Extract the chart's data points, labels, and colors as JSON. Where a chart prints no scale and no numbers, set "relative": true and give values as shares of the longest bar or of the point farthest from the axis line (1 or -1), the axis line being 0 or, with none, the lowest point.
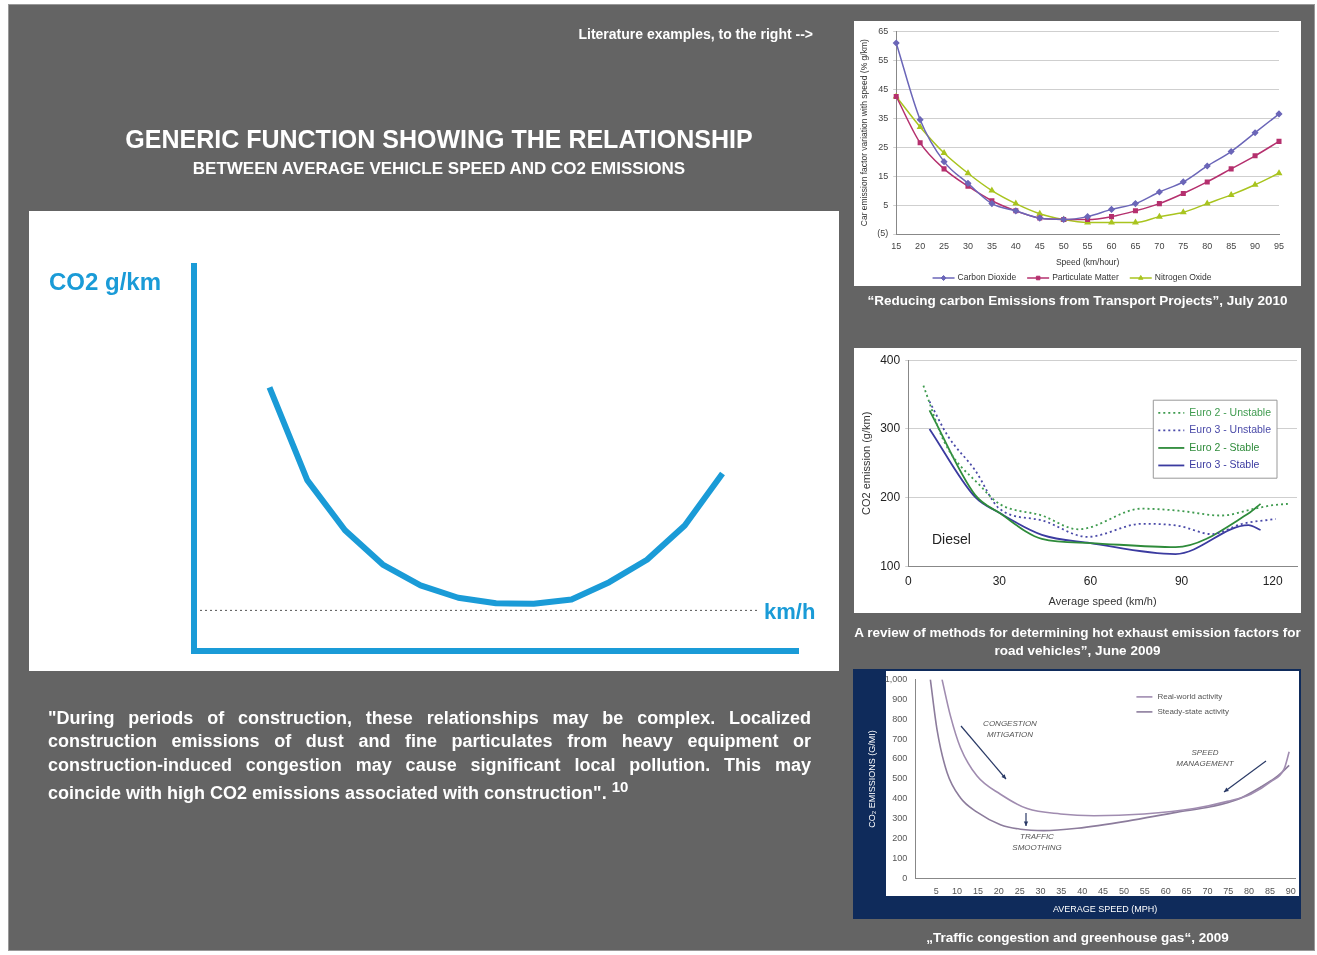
{
  "chart_data": [
    {
      "type": "line",
      "title": "GENERIC FUNCTION SHOWING THE RELATIONSHIP",
      "subtitle": "BETWEEN AVERAGE VEHICLE SPEED AND CO2 EMISSIONS",
      "xlabel": "km/h",
      "ylabel": "CO2 g/km",
      "relative": true,
      "categories": [
        null,
        null,
        null,
        null,
        null,
        null,
        null,
        null,
        null,
        null,
        null,
        null,
        null,
        null,
        null,
        null,
        null
      ],
      "values": [
        null,
        null,
        1,
        0.648,
        0.458,
        0.328,
        0.249,
        0.202,
        0.181,
        0.179,
        0.195,
        0.261,
        0.346,
        0.476,
        0.673,
        null,
        null
      ],
      "color": "#1a9bd7",
      "ref_lines": [
        {
          "axis": "y",
          "value": 0.154,
          "color": "#555555",
          "line_style": "dotted"
        }
      ],
      "annotations": [
        "Literature examples, to the right -->",
        "\"During periods of construction, these relationships may be complex. Localized construction emissions of dust and fine particulates from heavy equipment or construction-induced congestion may cause significant local pollution. This may coincide with high CO2 emissions associated with construction\". $^{10}$"
      ]
    },
    {
      "type": "line",
      "xlabel": "Speed (km/hour)",
      "ylabel": "Car emission factor variation with speed (% g/km)",
      "categories": [
        "15",
        "20",
        "25",
        "30",
        "35",
        "40",
        "45",
        "50",
        "55",
        "60",
        "65",
        "70",
        "75",
        "80",
        "85",
        "90",
        "95"
      ],
      "series": [
        {
          "name": "Carbon Dioxide",
          "color": "#6b66b8",
          "marker": "diamond",
          "values": [
            61,
            34.5,
            20,
            12.5,
            5.5,
            3,
            0.5,
            0,
            1,
            3.5,
            5.5,
            9.5,
            13,
            18.5,
            23.5,
            30,
            36.5
          ]
        },
        {
          "name": "Particulate Matter",
          "color": "#b5306e",
          "marker": "square",
          "values": [
            42.5,
            26.5,
            17.5,
            11.5,
            6.5,
            3,
            0.5,
            0,
            0,
            1,
            3,
            5.5,
            9,
            13,
            17.5,
            22,
            27
          ]
        },
        {
          "name": "Nitrogen Oxide",
          "color": "#a9c41f",
          "marker": "triangle",
          "values": [
            42.5,
            32,
            23,
            16,
            10,
            5.5,
            2,
            0,
            -1,
            -1,
            -1,
            1,
            2.5,
            5.5,
            8.5,
            12,
            16
          ]
        }
      ],
      "ylim": [
        -5,
        65
      ],
      "yticks": [
        {
          "value": -5,
          "label": "(5)"
        },
        5,
        15,
        25,
        35,
        45,
        55,
        65
      ],
      "grid": "y",
      "legend": "bottom",
      "annotations": [
        "“Reducing carbon Emissions from Transport Projects”, July 2010"
      ]
    },
    {
      "type": "line",
      "xlabel": "Average speed (km/h)",
      "ylabel": "CO2 emission (g/km)",
      "series": [
        {
          "name": "Euro 2 - Unstable",
          "color": "#3f9b4f",
          "line_style": "dotted",
          "x": [
            5,
            12,
            24,
            30,
            44,
            56,
            77,
            89,
            103,
            114,
            120,
            125
          ],
          "values": [
            363,
            280,
            216,
            191,
            174,
            154,
            184,
            181,
            174,
            184,
            189,
            191
          ]
        },
        {
          "name": "Euro 3 - Unstable",
          "color": "#4a4aa8",
          "line_style": "dotted",
          "x": [
            7,
            13,
            22,
            30,
            44,
            59,
            77,
            89,
            100,
            110,
            121
          ],
          "values": [
            340,
            290,
            240,
            184,
            167,
            143,
            162,
            159,
            147,
            162,
            169
          ]
        },
        {
          "name": "Euro 2 - Stable",
          "color": "#2e8b3a",
          "x": [
            7,
            22,
            30,
            44,
            60,
            88,
            112,
            116
          ],
          "values": [
            327,
            204,
            178,
            140,
            134,
            128,
            177,
            191
          ]
        },
        {
          "name": "Euro 3 - Stable",
          "color": "#3b3ba0",
          "x": [
            7,
            22,
            30,
            44,
            60,
            88,
            112,
            116
          ],
          "values": [
            300,
            201,
            178,
            146,
            134,
            118,
            160,
            153
          ]
        }
      ],
      "xlim": [
        0,
        128
      ],
      "xticks": [
        0,
        30,
        60,
        90,
        120
      ],
      "ylim": [
        100,
        400
      ],
      "yticks": [
        100,
        200,
        300,
        400
      ],
      "grid": "y",
      "legend": "top right",
      "annotations": [
        "Diesel",
        "A review of methods for determining hot exhaust emission factors for road vehicles”, June 2009"
      ]
    },
    {
      "type": "line",
      "xlabel": "AVERAGE SPEED (MPH)",
      "ylabel": "CO₂ EMISSIONS (G/MI)",
      "series": [
        {
          "name": "Real-world activity",
          "color": "#a08cb0",
          "x": [
            6.4,
            8.4,
            10.8,
            14.8,
            20.4,
            26.8,
            34.8,
            42.8,
            54.8,
            66.8,
            74.8,
            80.4,
            85.2,
            88.4,
            89.6
          ],
          "values": [
            1000,
            818,
            658,
            514,
            423,
            351,
            324,
            315,
            324,
            351,
            387,
            423,
            486,
            550,
            636
          ]
        },
        {
          "name": "Steady-state activity",
          "color": "#8c7c9c",
          "x": [
            3.6,
            5.2,
            7.6,
            10.8,
            14.8,
            20.4,
            25.2,
            30.8,
            38.8,
            50.8,
            62.8,
            70.8,
            77.2,
            82.8,
            86.8,
            89.6
          ],
          "values": [
            1000,
            748,
            532,
            405,
            333,
            270,
            247,
            240,
            252,
            288,
            333,
            360,
            396,
            459,
            514,
            568
          ]
        }
      ],
      "xlim": [
        0,
        91
      ],
      "xticks": [
        5,
        10,
        15,
        20,
        25,
        30,
        35,
        40,
        45,
        50,
        55,
        60,
        65,
        70,
        75,
        80,
        85,
        90
      ],
      "ylim": [
        0,
        1000
      ],
      "yticks": [
        0,
        100,
        200,
        300,
        400,
        500,
        600,
        700,
        800,
        900,
        {
          "value": 1000,
          "label": "1,000"
        }
      ],
      "legend": "top right",
      "annotations": [
        "CONGESTION MITIGATION",
        "SPEED MANAGEMENT",
        "TRAFFIC SMOOTHING",
        "„Traffic congestion and greenhouse gas“, 2009"
      ]
    }
  ]
}
